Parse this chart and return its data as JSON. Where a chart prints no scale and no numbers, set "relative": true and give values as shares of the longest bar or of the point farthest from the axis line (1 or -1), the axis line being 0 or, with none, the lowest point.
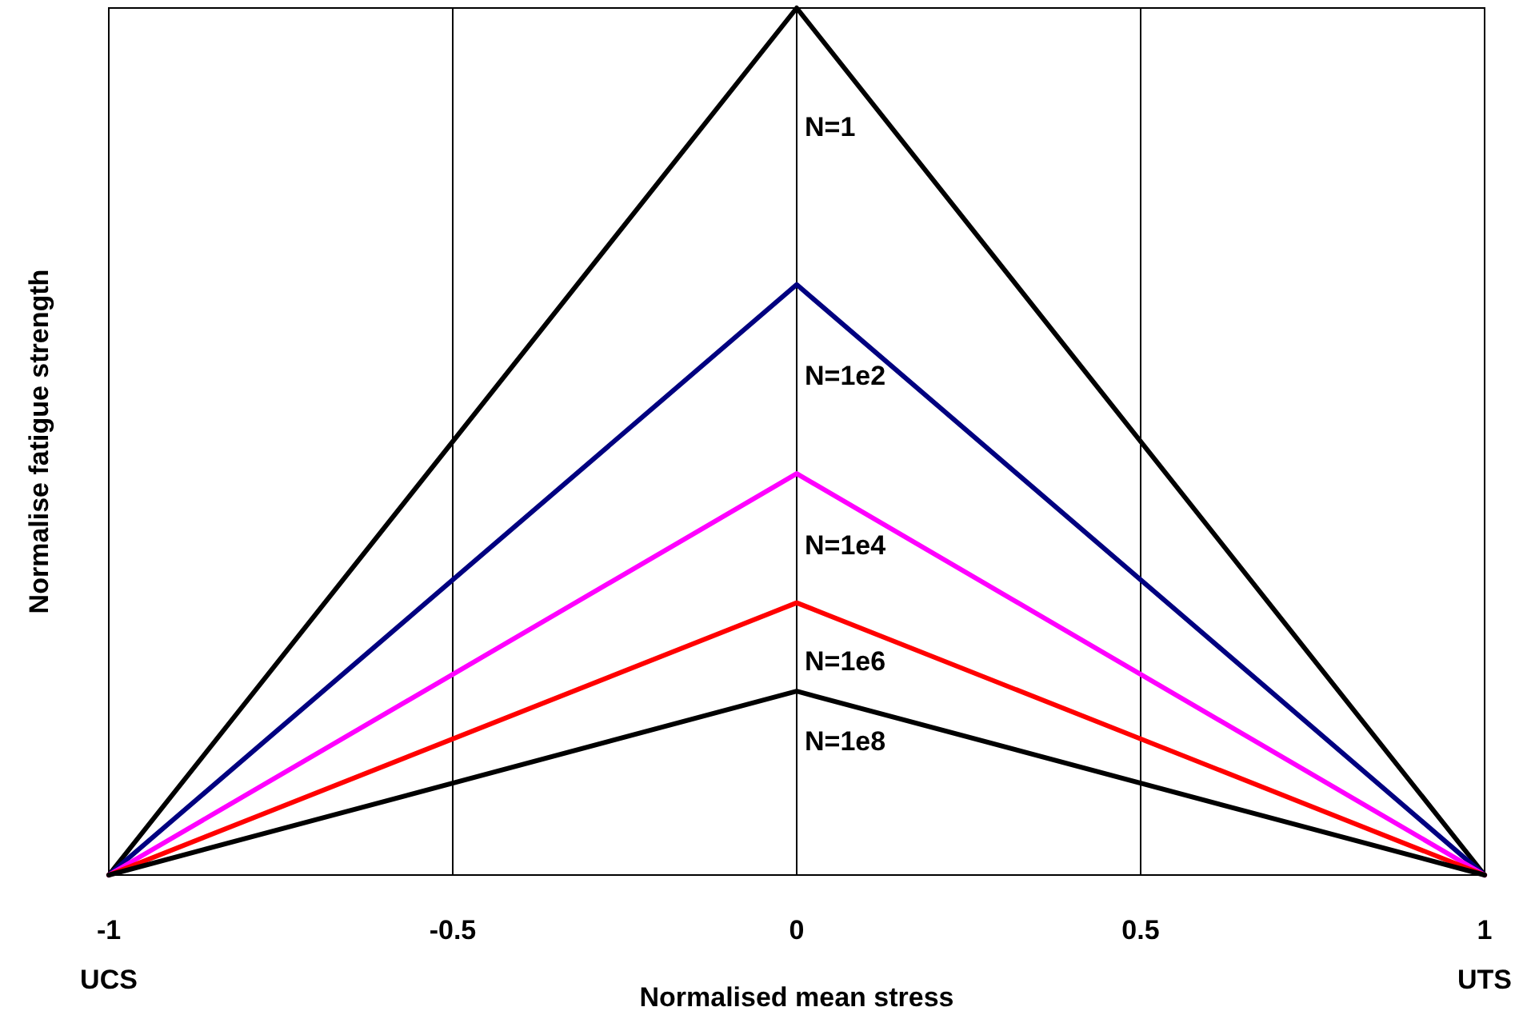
{
  "chart_data": {
    "type": "line",
    "relative": true,
    "xlabel": "Normalised mean stress",
    "ylabel": "Normalise fatigue strength",
    "xlim": [
      -1,
      1
    ],
    "xticks": [
      {
        "value": -1,
        "label": "-1\nUCS"
      },
      -0.5,
      0,
      0.5,
      {
        "value": 1,
        "label": "1\nUTS"
      }
    ],
    "grid": "x",
    "marker": "none",
    "line_style": "solid",
    "series": [
      {
        "name": "N=1",
        "color": "#000000",
        "x": [
          -1,
          0,
          1
        ],
        "values": [
          0,
          1,
          0
        ]
      },
      {
        "name": "N=1e2",
        "color": "#000080",
        "x": [
          -1,
          0,
          1
        ],
        "values": [
          0,
          0.681,
          0
        ]
      },
      {
        "name": "N=1e4",
        "color": "#ff00ff",
        "x": [
          -1,
          0,
          1
        ],
        "values": [
          0,
          0.463,
          0
        ]
      },
      {
        "name": "N=1e6",
        "color": "#ff0000",
        "x": [
          -1,
          0,
          1
        ],
        "values": [
          0,
          0.314,
          0
        ]
      },
      {
        "name": "N=1e8",
        "color": "#000000",
        "x": [
          -1,
          0,
          1
        ],
        "values": [
          0,
          0.212,
          0
        ]
      }
    ]
  }
}
